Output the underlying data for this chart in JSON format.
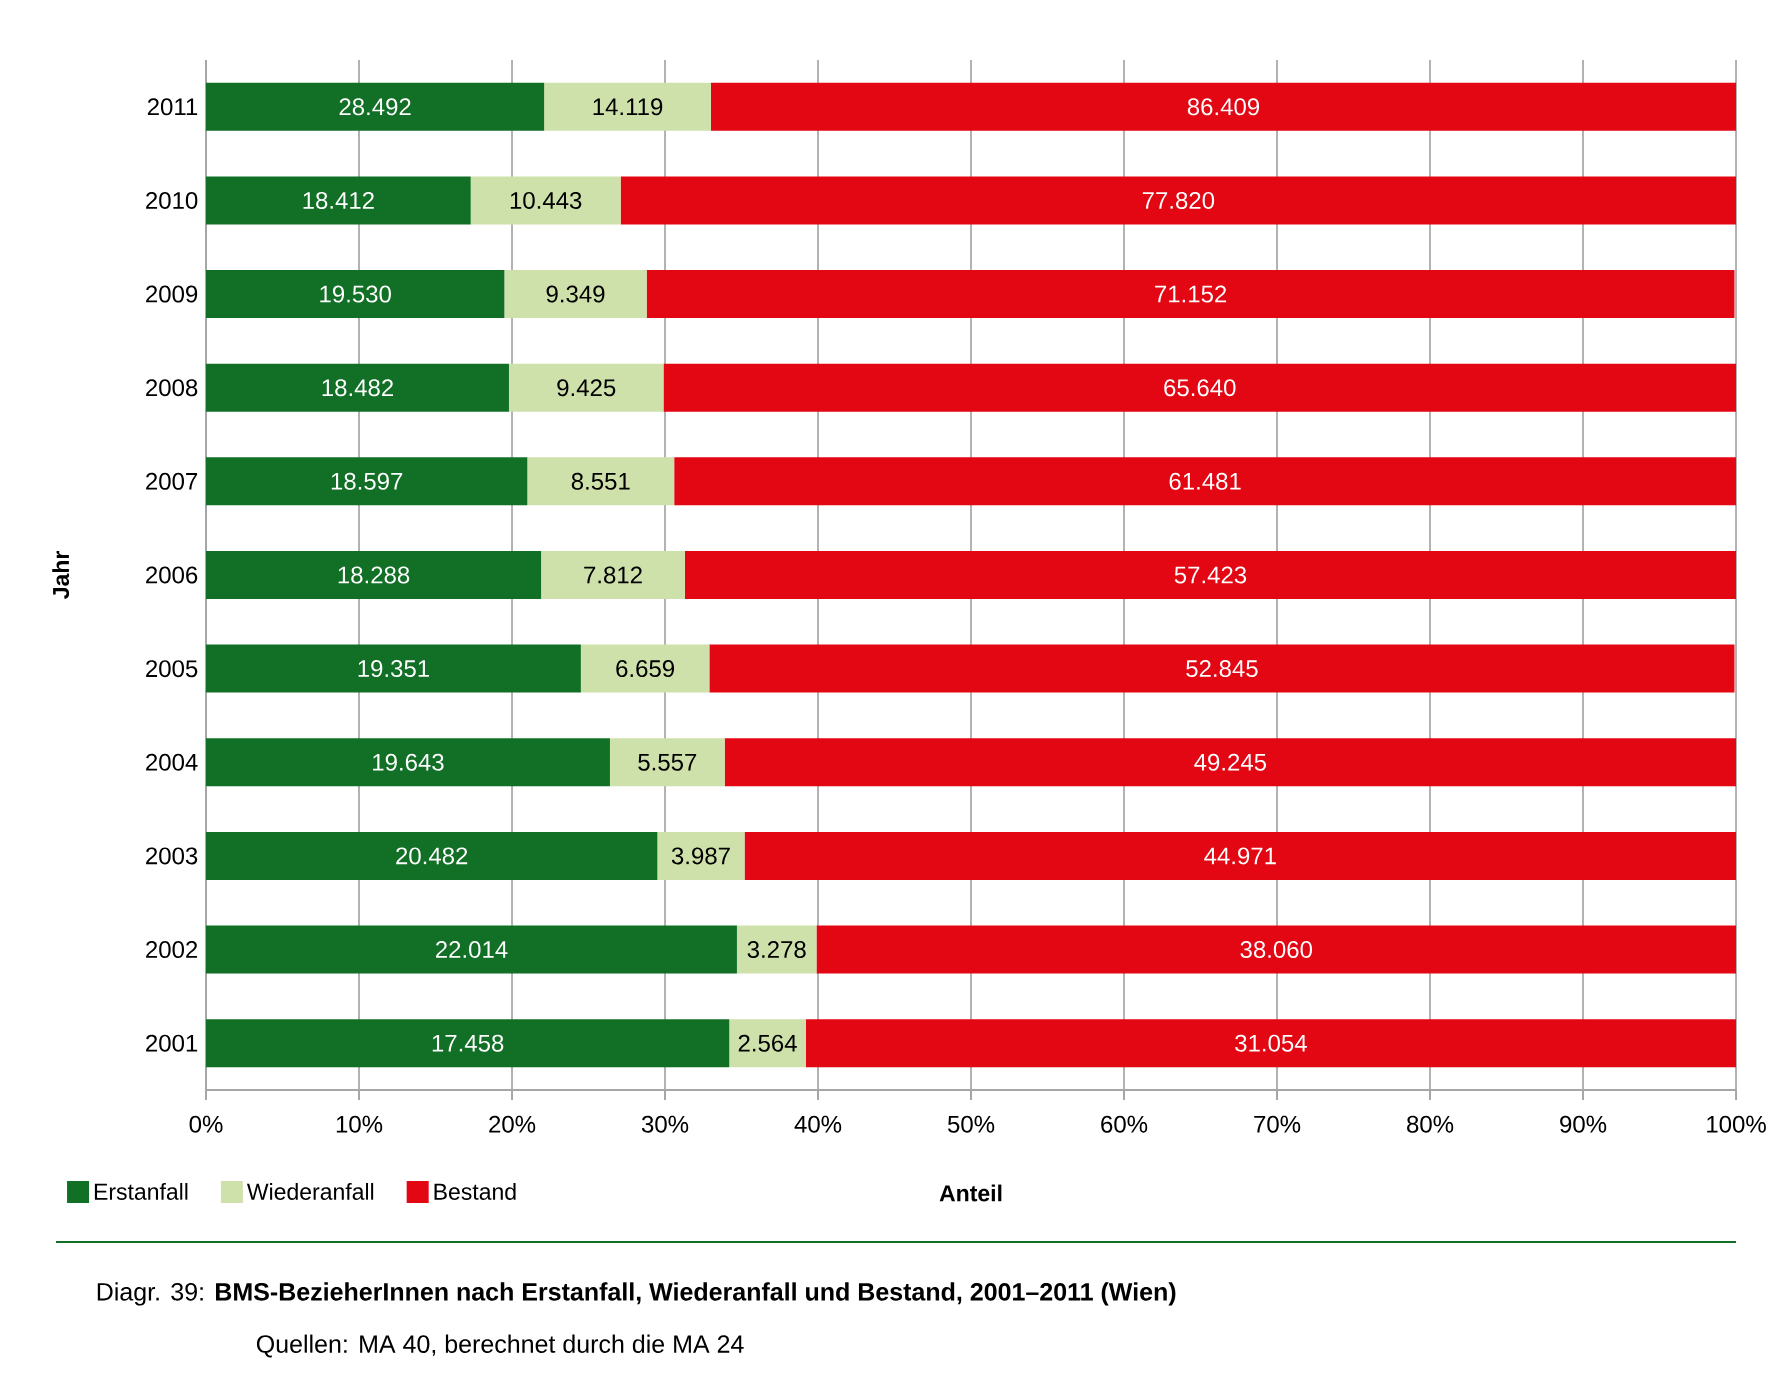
{
  "chart_data": {
    "type": "bar",
    "orientation": "horizontal",
    "stacked": true,
    "xlabel": "Anteil",
    "ylabel": "Jahr",
    "categories": [
      "2011",
      "2010",
      "2009",
      "2008",
      "2007",
      "2006",
      "2005",
      "2004",
      "2003",
      "2002",
      "2001"
    ],
    "series": [
      {
        "name": "Erstanfall",
        "color": "#116f26",
        "values": [
          22.1,
          17.3,
          19.5,
          19.8,
          21.0,
          21.9,
          24.5,
          26.4,
          29.5,
          34.7,
          34.2
        ]
      },
      {
        "name": "Wiederanfall",
        "color": "#cfe1aa",
        "values": [
          10.9,
          9.8,
          9.3,
          10.1,
          9.6,
          9.4,
          8.4,
          7.5,
          5.7,
          5.2,
          5.0
        ]
      },
      {
        "name": "Bestand",
        "color": "#e30613",
        "values": [
          67.0,
          72.9,
          71.1,
          70.1,
          69.4,
          68.7,
          67.0,
          66.1,
          64.8,
          60.1,
          60.8
        ]
      }
    ],
    "xlim": [
      0,
      100
    ],
    "xticks": [
      {
        "value": 0,
        "label": "0%"
      },
      {
        "value": 10,
        "label": "10%"
      },
      {
        "value": 20,
        "label": "20%"
      },
      {
        "value": 30,
        "label": "30%"
      },
      {
        "value": 40,
        "label": "40%"
      },
      {
        "value": 50,
        "label": "50%"
      },
      {
        "value": 60,
        "label": "60%"
      },
      {
        "value": 70,
        "label": "70%"
      },
      {
        "value": 80,
        "label": "80%"
      },
      {
        "value": 90,
        "label": "90%"
      },
      {
        "value": 100,
        "label": "100%"
      }
    ],
    "grid": "x",
    "legend": "bottom left",
    "annotations": [
      "Diagr. 39: **BMS-BezieherInnen nach Erstanfall, Wiederanfall und Bestand, 2001–2011 (Wien)**",
      "Quellen: MA 40, berechnet durch die MA 24",
      "28.492",
      "14.119",
      "86.409",
      "18.412",
      "10.443",
      "77.820",
      "19.530",
      "9.349",
      "71.152",
      "18.482",
      "9.425",
      "65.640",
      "18.597",
      "8.551",
      "61.481",
      "18.288",
      "7.812",
      "57.423",
      "19.351",
      "6.659",
      "52.845",
      "19.643",
      "5.557",
      "49.245",
      "20.482",
      "3.987",
      "44.971",
      "22.014",
      "3.278",
      "38.060",
      "17.458",
      "2.564",
      "31.054"
    ]
  }
}
